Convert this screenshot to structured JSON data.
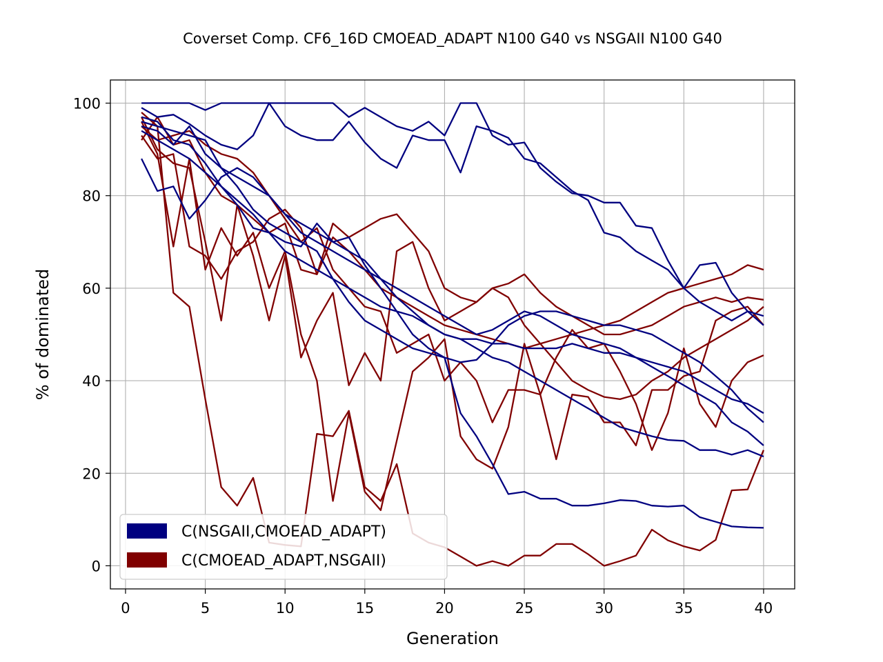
{
  "chart_data": {
    "type": "line",
    "title": "Coverset Comp. CF6_16D CMOEAD_ADAPT N100 G40 vs NSGAII N100 G40",
    "xlabel": "Generation",
    "ylabel": "% of dominated",
    "xlim": [
      -0.95,
      41.95
    ],
    "ylim": [
      -5,
      105
    ],
    "xticks": [
      0,
      5,
      10,
      15,
      20,
      25,
      30,
      35,
      40
    ],
    "yticks": [
      0,
      20,
      40,
      60,
      80,
      100
    ],
    "grid": true,
    "legend": {
      "position": "lower-left"
    },
    "x": [
      1,
      2,
      3,
      4,
      5,
      6,
      7,
      8,
      9,
      10,
      11,
      12,
      13,
      14,
      15,
      16,
      17,
      18,
      19,
      20,
      21,
      22,
      23,
      24,
      25,
      26,
      27,
      28,
      29,
      30,
      31,
      32,
      33,
      34,
      35,
      36,
      37,
      38,
      39,
      40
    ],
    "series": [
      {
        "name": "C(NSGAII,CMOEAD_ADAPT)",
        "color": "#000080",
        "runs": [
          [
            100,
            100,
            100,
            100,
            98.5,
            100,
            100,
            100,
            100,
            100,
            100,
            100,
            100,
            97,
            99,
            97,
            95,
            94,
            96,
            93,
            100,
            100,
            93,
            91,
            91.5,
            86,
            83,
            80.5,
            80,
            78.5,
            78.5,
            73.5,
            73,
            66,
            60,
            65,
            65.5,
            59,
            55,
            54
          ],
          [
            99,
            97,
            97.5,
            95.5,
            93,
            91,
            90,
            93,
            100,
            95,
            93,
            92,
            92,
            96,
            91.5,
            88,
            86,
            93,
            92,
            92,
            85,
            95,
            94,
            92.5,
            88,
            87,
            84,
            81,
            79,
            72,
            71,
            68,
            66,
            64,
            60,
            57,
            55,
            53,
            55,
            52
          ],
          [
            97,
            96,
            92,
            91,
            87,
            82,
            78,
            73,
            72,
            70,
            69,
            74,
            70,
            71,
            65,
            60,
            55,
            50,
            47,
            45,
            33,
            28,
            22,
            15.5,
            16,
            14.5,
            14.5,
            13,
            13,
            13.5,
            14.2,
            14,
            13,
            12.8,
            13,
            10.5,
            9.5,
            8.5,
            8.3,
            8.2
          ],
          [
            96,
            95,
            94,
            93,
            92,
            86,
            84,
            82,
            80,
            76,
            74,
            72,
            70,
            68,
            66,
            62,
            58,
            55,
            52,
            50,
            49,
            47,
            45,
            44,
            42,
            40,
            38,
            36,
            34,
            32,
            30,
            29,
            28,
            27.2,
            27,
            25,
            25,
            24,
            25,
            23.6
          ],
          [
            95,
            94,
            91,
            95,
            89,
            86,
            82,
            77,
            74,
            72,
            70,
            68,
            62,
            57,
            53,
            51,
            49,
            47,
            46,
            45,
            44,
            44.5,
            48,
            52,
            54,
            55,
            55,
            54,
            53,
            52,
            52,
            51,
            50,
            48,
            46,
            44,
            41,
            38,
            34,
            31
          ],
          [
            94,
            92,
            90,
            88,
            85,
            82,
            79,
            76,
            72,
            68,
            66,
            64,
            62,
            60,
            58,
            56,
            55,
            54,
            52,
            50,
            49,
            49,
            48,
            48,
            47,
            47,
            47,
            48,
            47,
            46,
            46,
            45,
            44,
            43,
            42,
            40,
            38,
            36,
            35,
            33
          ],
          [
            88,
            81,
            82,
            75,
            79,
            84,
            86,
            84,
            80,
            76,
            72,
            70,
            68,
            66,
            64,
            62,
            60,
            58,
            56,
            54,
            52,
            50,
            51,
            53,
            55,
            54,
            52,
            50,
            49,
            48,
            47,
            45,
            43,
            41,
            39,
            37,
            35,
            31,
            29,
            26
          ]
        ]
      },
      {
        "name": "C(CMOEAD_ADAPT,NSGAII)",
        "color": "#800000",
        "runs": [
          [
            98,
            95,
            59,
            56,
            36,
            17,
            13,
            19,
            5,
            4.5,
            4.2,
            28.5,
            28,
            33.5,
            17,
            14,
            22,
            7,
            5,
            4,
            2,
            0,
            1,
            0,
            2.2,
            2.2,
            4.7,
            4.7,
            2.5,
            0,
            1,
            2.2,
            7.8,
            5.5,
            4.2,
            3.3,
            5.6,
            16.3,
            16.5,
            25
          ],
          [
            97,
            90,
            87,
            86,
            70,
            53,
            78,
            67,
            53,
            67,
            45,
            53,
            59,
            39,
            46,
            40,
            68,
            70,
            60,
            53,
            55,
            57,
            60,
            58,
            52,
            48,
            44,
            40,
            38,
            36.5,
            36,
            37,
            40,
            42,
            45,
            47,
            49,
            51,
            53,
            56
          ],
          [
            96,
            89,
            69,
            88,
            64,
            73,
            67,
            72,
            60,
            68,
            50,
            40,
            14,
            33,
            16,
            12,
            27,
            42,
            45,
            49,
            28,
            23,
            21,
            30,
            48,
            37,
            45,
            51,
            47,
            48,
            42,
            35,
            25,
            33,
            47,
            35,
            30,
            40,
            44,
            45.5
          ],
          [
            95,
            92,
            93,
            94,
            91,
            89,
            88,
            85,
            80,
            75,
            70,
            73,
            64,
            60,
            56,
            55,
            46,
            48,
            50,
            40,
            44,
            40,
            31,
            38,
            38,
            37,
            23,
            37,
            36.5,
            31,
            31,
            26,
            38,
            38,
            41,
            42,
            53,
            55,
            56,
            52
          ],
          [
            93,
            88,
            89,
            69,
            67,
            62,
            68,
            70,
            75,
            77,
            73,
            63,
            74,
            71,
            73,
            75,
            76,
            72,
            68,
            60,
            58,
            57,
            60,
            61,
            63,
            59,
            56,
            54,
            52,
            50,
            50,
            51,
            52,
            54,
            56,
            57,
            58,
            57,
            58,
            57.5
          ],
          [
            92,
            97,
            91,
            92,
            85,
            80,
            78,
            75,
            72,
            74,
            64,
            63,
            71,
            68,
            64,
            60,
            58,
            56,
            54,
            52,
            51,
            50,
            49,
            48,
            47,
            48,
            49,
            50,
            51,
            52,
            53,
            55,
            57,
            59,
            60,
            61,
            62,
            63,
            65,
            64
          ]
        ]
      }
    ]
  }
}
